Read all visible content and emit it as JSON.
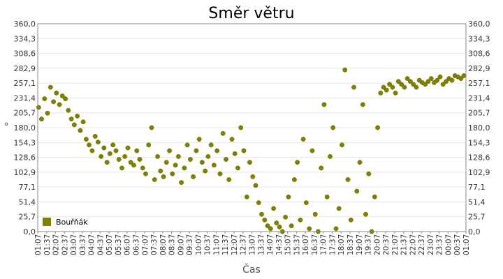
{
  "chart_data": {
    "type": "scatter",
    "title": "Směr větru",
    "xlabel": "Čas",
    "ylabel": "°",
    "ylim": [
      0,
      360
    ],
    "y_ticks": [
      "0,0",
      "25,7",
      "51,4",
      "77,1",
      "102,9",
      "128,6",
      "154,3",
      "180,0",
      "205,7",
      "231,4",
      "257,1",
      "282,9",
      "308,6",
      "334,3",
      "360,0"
    ],
    "x_ticks": [
      "01:07",
      "01:37",
      "02:07",
      "02:37",
      "03:07",
      "03:37",
      "04:07",
      "04:37",
      "05:07",
      "05:37",
      "06:07",
      "06:37",
      "07:07",
      "07:37",
      "08:07",
      "08:37",
      "09:07",
      "09:37",
      "10:07",
      "10:37",
      "11:07",
      "11:37",
      "12:07",
      "12:37",
      "13:07",
      "13:37",
      "14:07",
      "14:37",
      "15:07",
      "15:37",
      "16:07",
      "16:37",
      "17:07",
      "17:37",
      "18:07",
      "18:37",
      "19:07",
      "19:37",
      "20:07",
      "20:37",
      "21:07",
      "21:37",
      "22:07",
      "22:37",
      "23:07",
      "23:37",
      "00:07",
      "00:37",
      "01:07"
    ],
    "grid": true,
    "legend_position": "bottom-left",
    "series": [
      {
        "name": "Bouřňák",
        "color": "#808000",
        "x": [
          "01:10",
          "01:20",
          "01:30",
          "01:40",
          "01:50",
          "02:00",
          "02:10",
          "02:20",
          "02:30",
          "02:40",
          "02:50",
          "03:00",
          "03:10",
          "03:20",
          "03:30",
          "03:40",
          "03:50",
          "04:00",
          "04:10",
          "04:20",
          "04:30",
          "04:40",
          "04:50",
          "05:00",
          "05:10",
          "05:20",
          "05:30",
          "05:40",
          "05:50",
          "06:00",
          "06:10",
          "06:20",
          "06:30",
          "06:40",
          "06:50",
          "07:00",
          "07:10",
          "07:20",
          "07:30",
          "07:40",
          "07:50",
          "08:00",
          "08:10",
          "08:20",
          "08:30",
          "08:40",
          "08:50",
          "09:00",
          "09:10",
          "09:20",
          "09:30",
          "09:40",
          "09:50",
          "10:00",
          "10:10",
          "10:20",
          "10:30",
          "10:40",
          "10:50",
          "11:00",
          "11:10",
          "11:20",
          "11:30",
          "11:40",
          "11:50",
          "12:00",
          "12:10",
          "12:20",
          "12:30",
          "12:40",
          "12:50",
          "13:00",
          "13:10",
          "13:20",
          "13:30",
          "13:40",
          "13:50",
          "14:00",
          "14:10",
          "14:20",
          "14:30",
          "14:40",
          "14:50",
          "15:00",
          "15:10",
          "15:20",
          "15:30",
          "15:40",
          "15:50",
          "16:00",
          "16:10",
          "16:20",
          "16:30",
          "16:40",
          "16:50",
          "17:00",
          "17:10",
          "17:20",
          "17:30",
          "17:40",
          "17:50",
          "18:00",
          "18:10",
          "18:20",
          "18:30",
          "18:40",
          "18:50",
          "19:00",
          "19:10",
          "19:20",
          "19:30",
          "19:40",
          "19:50",
          "20:00",
          "20:10",
          "20:20",
          "20:30",
          "20:40",
          "20:50",
          "21:00",
          "21:10",
          "21:20",
          "21:30",
          "21:40",
          "21:50",
          "22:00",
          "22:10",
          "22:20",
          "22:30",
          "22:40",
          "22:50",
          "23:00",
          "23:10",
          "23:20",
          "23:30",
          "23:40",
          "23:50",
          "00:00",
          "00:10",
          "00:20",
          "00:30",
          "00:40",
          "00:50",
          "01:00"
        ],
        "y": [
          215,
          195,
          230,
          205,
          250,
          225,
          240,
          220,
          235,
          230,
          210,
          195,
          185,
          200,
          175,
          190,
          160,
          150,
          140,
          165,
          155,
          130,
          145,
          120,
          135,
          150,
          140,
          125,
          110,
          130,
          145,
          120,
          115,
          140,
          125,
          110,
          100,
          150,
          180,
          90,
          130,
          105,
          95,
          120,
          140,
          100,
          115,
          130,
          85,
          110,
          150,
          125,
          95,
          140,
          160,
          120,
          105,
          130,
          150,
          115,
          140,
          100,
          170,
          125,
          90,
          160,
          135,
          110,
          180,
          140,
          60,
          120,
          95,
          80,
          50,
          30,
          20,
          10,
          5,
          40,
          15,
          8,
          0,
          25,
          60,
          10,
          90,
          120,
          20,
          160,
          50,
          5,
          140,
          30,
          0,
          110,
          220,
          60,
          130,
          180,
          5,
          40,
          150,
          280,
          90,
          20,
          250,
          70,
          120,
          220,
          30,
          100,
          0,
          60,
          180,
          240,
          250,
          245,
          255,
          250,
          240,
          260,
          255,
          250,
          265,
          260,
          255,
          250,
          262,
          258,
          255,
          260,
          265,
          258,
          262,
          268,
          255,
          260,
          265,
          262,
          270,
          268,
          265,
          270
        ]
      }
    ]
  }
}
